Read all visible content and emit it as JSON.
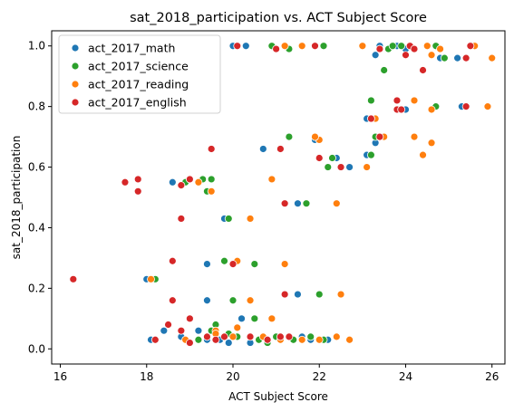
{
  "chart_data": {
    "type": "scatter",
    "title": "sat_2018_participation vs. ACT Subject Score",
    "xlabel": "ACT Subject Score",
    "ylabel": "sat_2018_participation",
    "xlim": [
      15.8,
      26.3
    ],
    "ylim": [
      -0.05,
      1.05
    ],
    "xticks": [
      16,
      18,
      20,
      22,
      24,
      26
    ],
    "yticks": [
      0.0,
      0.2,
      0.4,
      0.6,
      0.8,
      1.0
    ],
    "xtick_labels": [
      "16",
      "18",
      "20",
      "22",
      "24",
      "26"
    ],
    "ytick_labels": [
      "0.0",
      "0.2",
      "0.4",
      "0.6",
      "0.8",
      "1.0"
    ],
    "grid": false,
    "legend_position": "top-left",
    "series": [
      {
        "name": "act_2017_math",
        "color": "#1f77b4",
        "points": [
          [
            20.0,
            1.0
          ],
          [
            20.3,
            1.0
          ],
          [
            21.2,
            1.0
          ],
          [
            21.9,
            1.0
          ],
          [
            23.3,
            0.97
          ],
          [
            23.4,
            1.0
          ],
          [
            23.8,
            1.0
          ],
          [
            24.0,
            0.99
          ],
          [
            24.8,
            0.96
          ],
          [
            25.2,
            0.96
          ],
          [
            25.5,
            1.0
          ],
          [
            23.1,
            0.76
          ],
          [
            24.0,
            0.79
          ],
          [
            25.3,
            0.8
          ],
          [
            23.3,
            0.68
          ],
          [
            20.7,
            0.66
          ],
          [
            21.9,
            0.69
          ],
          [
            22.4,
            0.63
          ],
          [
            23.1,
            0.64
          ],
          [
            22.7,
            0.6
          ],
          [
            18.6,
            0.55
          ],
          [
            19.3,
            0.56
          ],
          [
            19.8,
            0.43
          ],
          [
            21.5,
            0.48
          ],
          [
            19.4,
            0.28
          ],
          [
            18.0,
            0.23
          ],
          [
            21.5,
            0.18
          ],
          [
            19.4,
            0.16
          ],
          [
            20.2,
            0.1
          ],
          [
            18.4,
            0.06
          ],
          [
            19.2,
            0.06
          ],
          [
            18.8,
            0.04
          ],
          [
            18.1,
            0.03
          ],
          [
            19.4,
            0.03
          ],
          [
            19.7,
            0.03
          ],
          [
            19.9,
            0.02
          ],
          [
            20.4,
            0.02
          ],
          [
            20.6,
            0.03
          ],
          [
            21.1,
            0.03
          ],
          [
            21.6,
            0.04
          ],
          [
            21.8,
            0.03
          ],
          [
            22.0,
            0.03
          ],
          [
            22.2,
            0.03
          ]
        ]
      },
      {
        "name": "act_2017_science",
        "color": "#2ca02c",
        "points": [
          [
            20.9,
            1.0
          ],
          [
            21.3,
            0.99
          ],
          [
            22.1,
            1.0
          ],
          [
            23.6,
            0.99
          ],
          [
            23.7,
            1.0
          ],
          [
            23.9,
            1.0
          ],
          [
            24.7,
            1.0
          ],
          [
            24.9,
            0.96
          ],
          [
            23.5,
            0.92
          ],
          [
            23.2,
            0.82
          ],
          [
            24.7,
            0.8
          ],
          [
            23.3,
            0.7
          ],
          [
            21.3,
            0.7
          ],
          [
            22.0,
            0.69
          ],
          [
            22.3,
            0.63
          ],
          [
            22.2,
            0.6
          ],
          [
            23.2,
            0.64
          ],
          [
            19.5,
            0.56
          ],
          [
            19.3,
            0.56
          ],
          [
            18.9,
            0.55
          ],
          [
            19.4,
            0.52
          ],
          [
            19.9,
            0.43
          ],
          [
            21.7,
            0.48
          ],
          [
            19.8,
            0.29
          ],
          [
            20.5,
            0.28
          ],
          [
            18.2,
            0.23
          ],
          [
            22.0,
            0.18
          ],
          [
            20.0,
            0.16
          ],
          [
            20.5,
            0.1
          ],
          [
            19.6,
            0.08
          ],
          [
            19.5,
            0.06
          ],
          [
            19.9,
            0.05
          ],
          [
            20.1,
            0.04
          ],
          [
            20.6,
            0.03
          ],
          [
            20.8,
            0.02
          ],
          [
            21.0,
            0.04
          ],
          [
            21.4,
            0.03
          ],
          [
            21.8,
            0.04
          ],
          [
            22.1,
            0.03
          ],
          [
            19.2,
            0.03
          ]
        ]
      },
      {
        "name": "act_2017_reading",
        "color": "#ff7f0e",
        "points": [
          [
            21.2,
            1.0
          ],
          [
            21.6,
            1.0
          ],
          [
            23.0,
            1.0
          ],
          [
            24.5,
            1.0
          ],
          [
            24.8,
            0.99
          ],
          [
            25.6,
            1.0
          ],
          [
            26.0,
            0.96
          ],
          [
            24.6,
            0.97
          ],
          [
            23.3,
            0.76
          ],
          [
            24.2,
            0.82
          ],
          [
            24.6,
            0.79
          ],
          [
            25.9,
            0.8
          ],
          [
            23.5,
            0.7
          ],
          [
            24.2,
            0.7
          ],
          [
            22.0,
            0.69
          ],
          [
            24.6,
            0.68
          ],
          [
            23.1,
            0.6
          ],
          [
            24.4,
            0.64
          ],
          [
            21.9,
            0.7
          ],
          [
            19.5,
            0.52
          ],
          [
            19.2,
            0.55
          ],
          [
            19.0,
            0.56
          ],
          [
            20.9,
            0.56
          ],
          [
            20.4,
            0.43
          ],
          [
            22.4,
            0.48
          ],
          [
            21.2,
            0.28
          ],
          [
            20.1,
            0.29
          ],
          [
            18.1,
            0.23
          ],
          [
            22.5,
            0.18
          ],
          [
            20.4,
            0.16
          ],
          [
            20.9,
            0.1
          ],
          [
            19.6,
            0.06
          ],
          [
            20.1,
            0.07
          ],
          [
            20.7,
            0.04
          ],
          [
            21.1,
            0.03
          ],
          [
            21.6,
            0.03
          ],
          [
            22.0,
            0.03
          ],
          [
            22.4,
            0.04
          ],
          [
            22.7,
            0.03
          ],
          [
            18.9,
            0.03
          ],
          [
            19.6,
            0.05
          ],
          [
            20.0,
            0.04
          ]
        ]
      },
      {
        "name": "act_2017_english",
        "color": "#d62728",
        "points": [
          [
            20.1,
            1.0
          ],
          [
            21.0,
            0.99
          ],
          [
            21.9,
            1.0
          ],
          [
            23.4,
            0.99
          ],
          [
            24.0,
            0.97
          ],
          [
            24.1,
            1.0
          ],
          [
            24.2,
            0.99
          ],
          [
            24.4,
            0.92
          ],
          [
            25.4,
            0.96
          ],
          [
            25.5,
            1.0
          ],
          [
            23.2,
            0.76
          ],
          [
            23.8,
            0.79
          ],
          [
            23.9,
            0.79
          ],
          [
            23.8,
            0.82
          ],
          [
            25.4,
            0.8
          ],
          [
            23.4,
            0.7
          ],
          [
            22.0,
            0.63
          ],
          [
            22.5,
            0.6
          ],
          [
            21.1,
            0.66
          ],
          [
            19.5,
            0.66
          ],
          [
            17.8,
            0.56
          ],
          [
            17.5,
            0.55
          ],
          [
            17.8,
            0.52
          ],
          [
            19.0,
            0.56
          ],
          [
            18.8,
            0.54
          ],
          [
            18.8,
            0.43
          ],
          [
            21.2,
            0.48
          ],
          [
            18.6,
            0.29
          ],
          [
            20.0,
            0.28
          ],
          [
            16.3,
            0.23
          ],
          [
            18.6,
            0.16
          ],
          [
            21.2,
            0.18
          ],
          [
            19.0,
            0.1
          ],
          [
            18.5,
            0.08
          ],
          [
            18.8,
            0.06
          ],
          [
            19.4,
            0.04
          ],
          [
            19.6,
            0.03
          ],
          [
            19.8,
            0.04
          ],
          [
            20.4,
            0.04
          ],
          [
            20.8,
            0.03
          ],
          [
            21.1,
            0.04
          ],
          [
            21.3,
            0.04
          ],
          [
            18.2,
            0.03
          ],
          [
            19.0,
            0.02
          ]
        ]
      }
    ]
  }
}
